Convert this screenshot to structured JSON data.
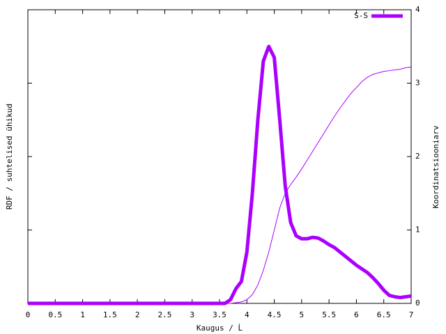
{
  "chart_data": {
    "type": "line",
    "x_label": "Kaugus / Ĺ",
    "y_label": "RDF / suhtelised ühikud",
    "y2_label": "Koordinatsiooniarv",
    "x": [
      0,
      3.5,
      3.6,
      3.7,
      3.8,
      3.9,
      4.0,
      4.1,
      4.2,
      4.3,
      4.4,
      4.5,
      4.6,
      4.7,
      4.8,
      4.9,
      5.0,
      5.1,
      5.2,
      5.3,
      5.4,
      5.5,
      5.6,
      5.7,
      5.8,
      5.9,
      6.0,
      6.1,
      6.2,
      6.3,
      6.4,
      6.5,
      6.6,
      6.7,
      6.8,
      6.9,
      7.0
    ],
    "series": [
      {
        "name": "S-S",
        "color": "#aa00ff",
        "width": 5,
        "values": [
          0,
          0,
          0,
          0.05,
          0.2,
          0.3,
          0.7,
          1.5,
          2.5,
          3.3,
          3.5,
          3.35,
          2.5,
          1.6,
          1.1,
          0.92,
          0.88,
          0.88,
          0.9,
          0.89,
          0.85,
          0.8,
          0.76,
          0.7,
          0.64,
          0.58,
          0.52,
          0.47,
          0.42,
          0.35,
          0.27,
          0.18,
          0.11,
          0.09,
          0.08,
          0.09,
          0.1
        ]
      },
      {
        "color": "#aa00ff",
        "width": 1,
        "axis": "y2",
        "values": [
          0,
          0,
          0,
          0,
          0.01,
          0.02,
          0.05,
          0.12,
          0.25,
          0.45,
          0.7,
          1.0,
          1.3,
          1.5,
          1.62,
          1.72,
          1.83,
          1.95,
          2.07,
          2.19,
          2.31,
          2.43,
          2.55,
          2.66,
          2.76,
          2.86,
          2.94,
          3.02,
          3.08,
          3.12,
          3.14,
          3.16,
          3.17,
          3.18,
          3.19,
          3.21,
          3.22
        ]
      }
    ],
    "xlim": [
      0,
      7
    ],
    "xticks": [
      0,
      0.5,
      1,
      1.5,
      2,
      2.5,
      3,
      3.5,
      4,
      4.5,
      5,
      5.5,
      6,
      6.5,
      7
    ],
    "ylim": [
      0,
      4
    ],
    "y2lim": [
      0,
      4
    ],
    "y2ticks": [
      0,
      1,
      2,
      3,
      4
    ],
    "legend": "top-right"
  }
}
